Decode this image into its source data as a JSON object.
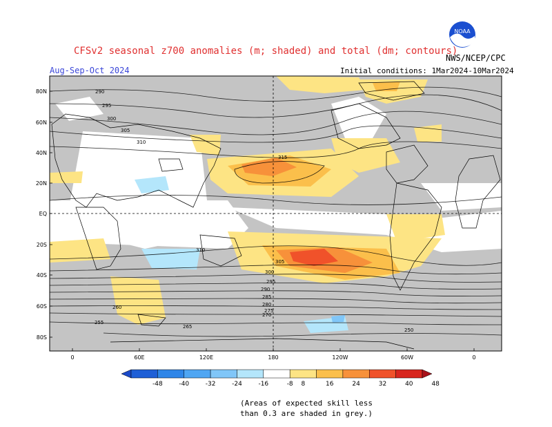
{
  "header": {
    "title": "CFSv2 seasonal z700 anomalies (m; shaded) and total (dm; contours)",
    "season": "Aug-Sep-Oct 2024",
    "initial_conditions": "Initial conditions: 1Mar2024-10Mar2024",
    "agency": "NWS/NCEP/CPC",
    "logo_text": "NOAA"
  },
  "map": {
    "lat_labels": [
      "80N",
      "60N",
      "40N",
      "20N",
      "EQ",
      "20S",
      "40S",
      "60S",
      "80S"
    ],
    "lon_labels": [
      "0",
      "60E",
      "120E",
      "180",
      "120W",
      "60W",
      "0"
    ],
    "contour_labels": [
      "290",
      "295",
      "300",
      "305",
      "310",
      "315",
      "310",
      "305",
      "300",
      "295",
      "290",
      "285",
      "280",
      "275",
      "270",
      "265",
      "260",
      "255",
      "250"
    ]
  },
  "colorbar": {
    "ticks": [
      "-48",
      "-40",
      "-32",
      "-24",
      "-16",
      "-8",
      "8",
      "16",
      "24",
      "32",
      "40",
      "48"
    ],
    "colors": [
      "#1e5fd6",
      "#2f86e8",
      "#4fa6f3",
      "#80c6f8",
      "#b4e6fb",
      "#ffffff",
      "#fde484",
      "#fbbf4b",
      "#f7913a",
      "#f0522a",
      "#d8261e"
    ]
  },
  "note": {
    "line1": "(Areas of expected skill less",
    "line2": "than 0.3 are shaded in grey.)"
  },
  "colors": {
    "grey_low_skill": "#c4c4c4",
    "title": "#e03030",
    "season": "#3a46d8"
  }
}
